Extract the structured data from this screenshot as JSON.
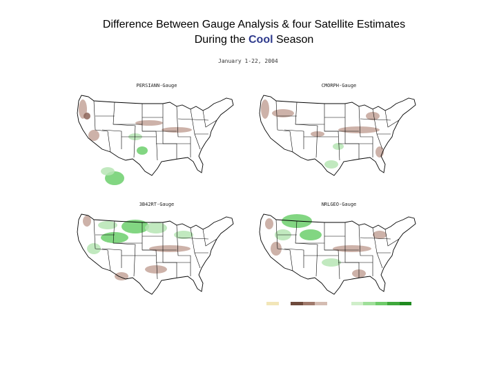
{
  "title": {
    "line1": "Difference Between Gauge Analysis & four Satellite Estimates",
    "line2_prefix": "During the ",
    "line2_highlight": "Cool",
    "line2_suffix": " Season"
  },
  "subtitle": "January 1-22, 2004",
  "panels": [
    {
      "label": "PERSIANN-Gauge",
      "region": "usa-map"
    },
    {
      "label": "CMORPH-Gauge",
      "region": "usa-map"
    },
    {
      "label": "3B42RT-Gauge",
      "region": "usa-map"
    },
    {
      "label": "NRLGEO-Gauge",
      "region": "usa-map"
    }
  ],
  "colors": {
    "wet": "#6ccf6c",
    "wet_light": "#b6e5b4",
    "dry": "#c4a49a",
    "dry_dark": "#8c6458",
    "border": "#000000"
  },
  "legend": {
    "colors": [
      "#f2e6b8",
      "#ffffff",
      "#6e4a3c",
      "#a07a6c",
      "#d4bcb2",
      "#ffffff",
      "#ffffff",
      "#cfeec9",
      "#9fdf9a",
      "#6fcb6a",
      "#3fa83c",
      "#1f8a20"
    ],
    "ticks": [
      "-",
      "-",
      "-",
      "-",
      "-",
      "",
      "",
      "",
      "",
      "",
      "",
      ""
    ]
  }
}
